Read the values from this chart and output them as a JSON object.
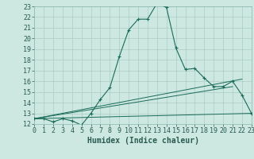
{
  "title": "",
  "xlabel": "Humidex (Indice chaleur)",
  "background_color": "#cce8e0",
  "grid_color": "#aaccc4",
  "line_color": "#1a6b5a",
  "xlim": [
    0,
    23
  ],
  "ylim": [
    12,
    23
  ],
  "xticks": [
    0,
    1,
    2,
    3,
    4,
    5,
    6,
    7,
    8,
    9,
    10,
    11,
    12,
    13,
    14,
    15,
    16,
    17,
    18,
    19,
    20,
    21,
    22,
    23
  ],
  "yticks": [
    12,
    13,
    14,
    15,
    16,
    17,
    18,
    19,
    20,
    21,
    22,
    23
  ],
  "main_line_x": [
    0,
    1,
    2,
    3,
    4,
    5,
    6,
    7,
    8,
    9,
    10,
    11,
    12,
    13,
    14,
    15,
    16,
    17,
    18,
    19,
    20,
    21,
    22,
    23
  ],
  "main_line_y": [
    12.5,
    12.5,
    12.2,
    12.5,
    12.3,
    11.9,
    13.0,
    14.3,
    15.4,
    18.3,
    20.8,
    21.8,
    21.8,
    23.3,
    22.9,
    19.1,
    17.1,
    17.2,
    16.3,
    15.5,
    15.5,
    16.0,
    14.7,
    13.0
  ],
  "line2_x": [
    0,
    23
  ],
  "line2_y": [
    12.5,
    13.0
  ],
  "line3_x": [
    0,
    22
  ],
  "line3_y": [
    12.5,
    16.2
  ],
  "line4_x": [
    0,
    21
  ],
  "line4_y": [
    12.5,
    15.5
  ],
  "font_size_tick": 6,
  "font_size_label": 7
}
